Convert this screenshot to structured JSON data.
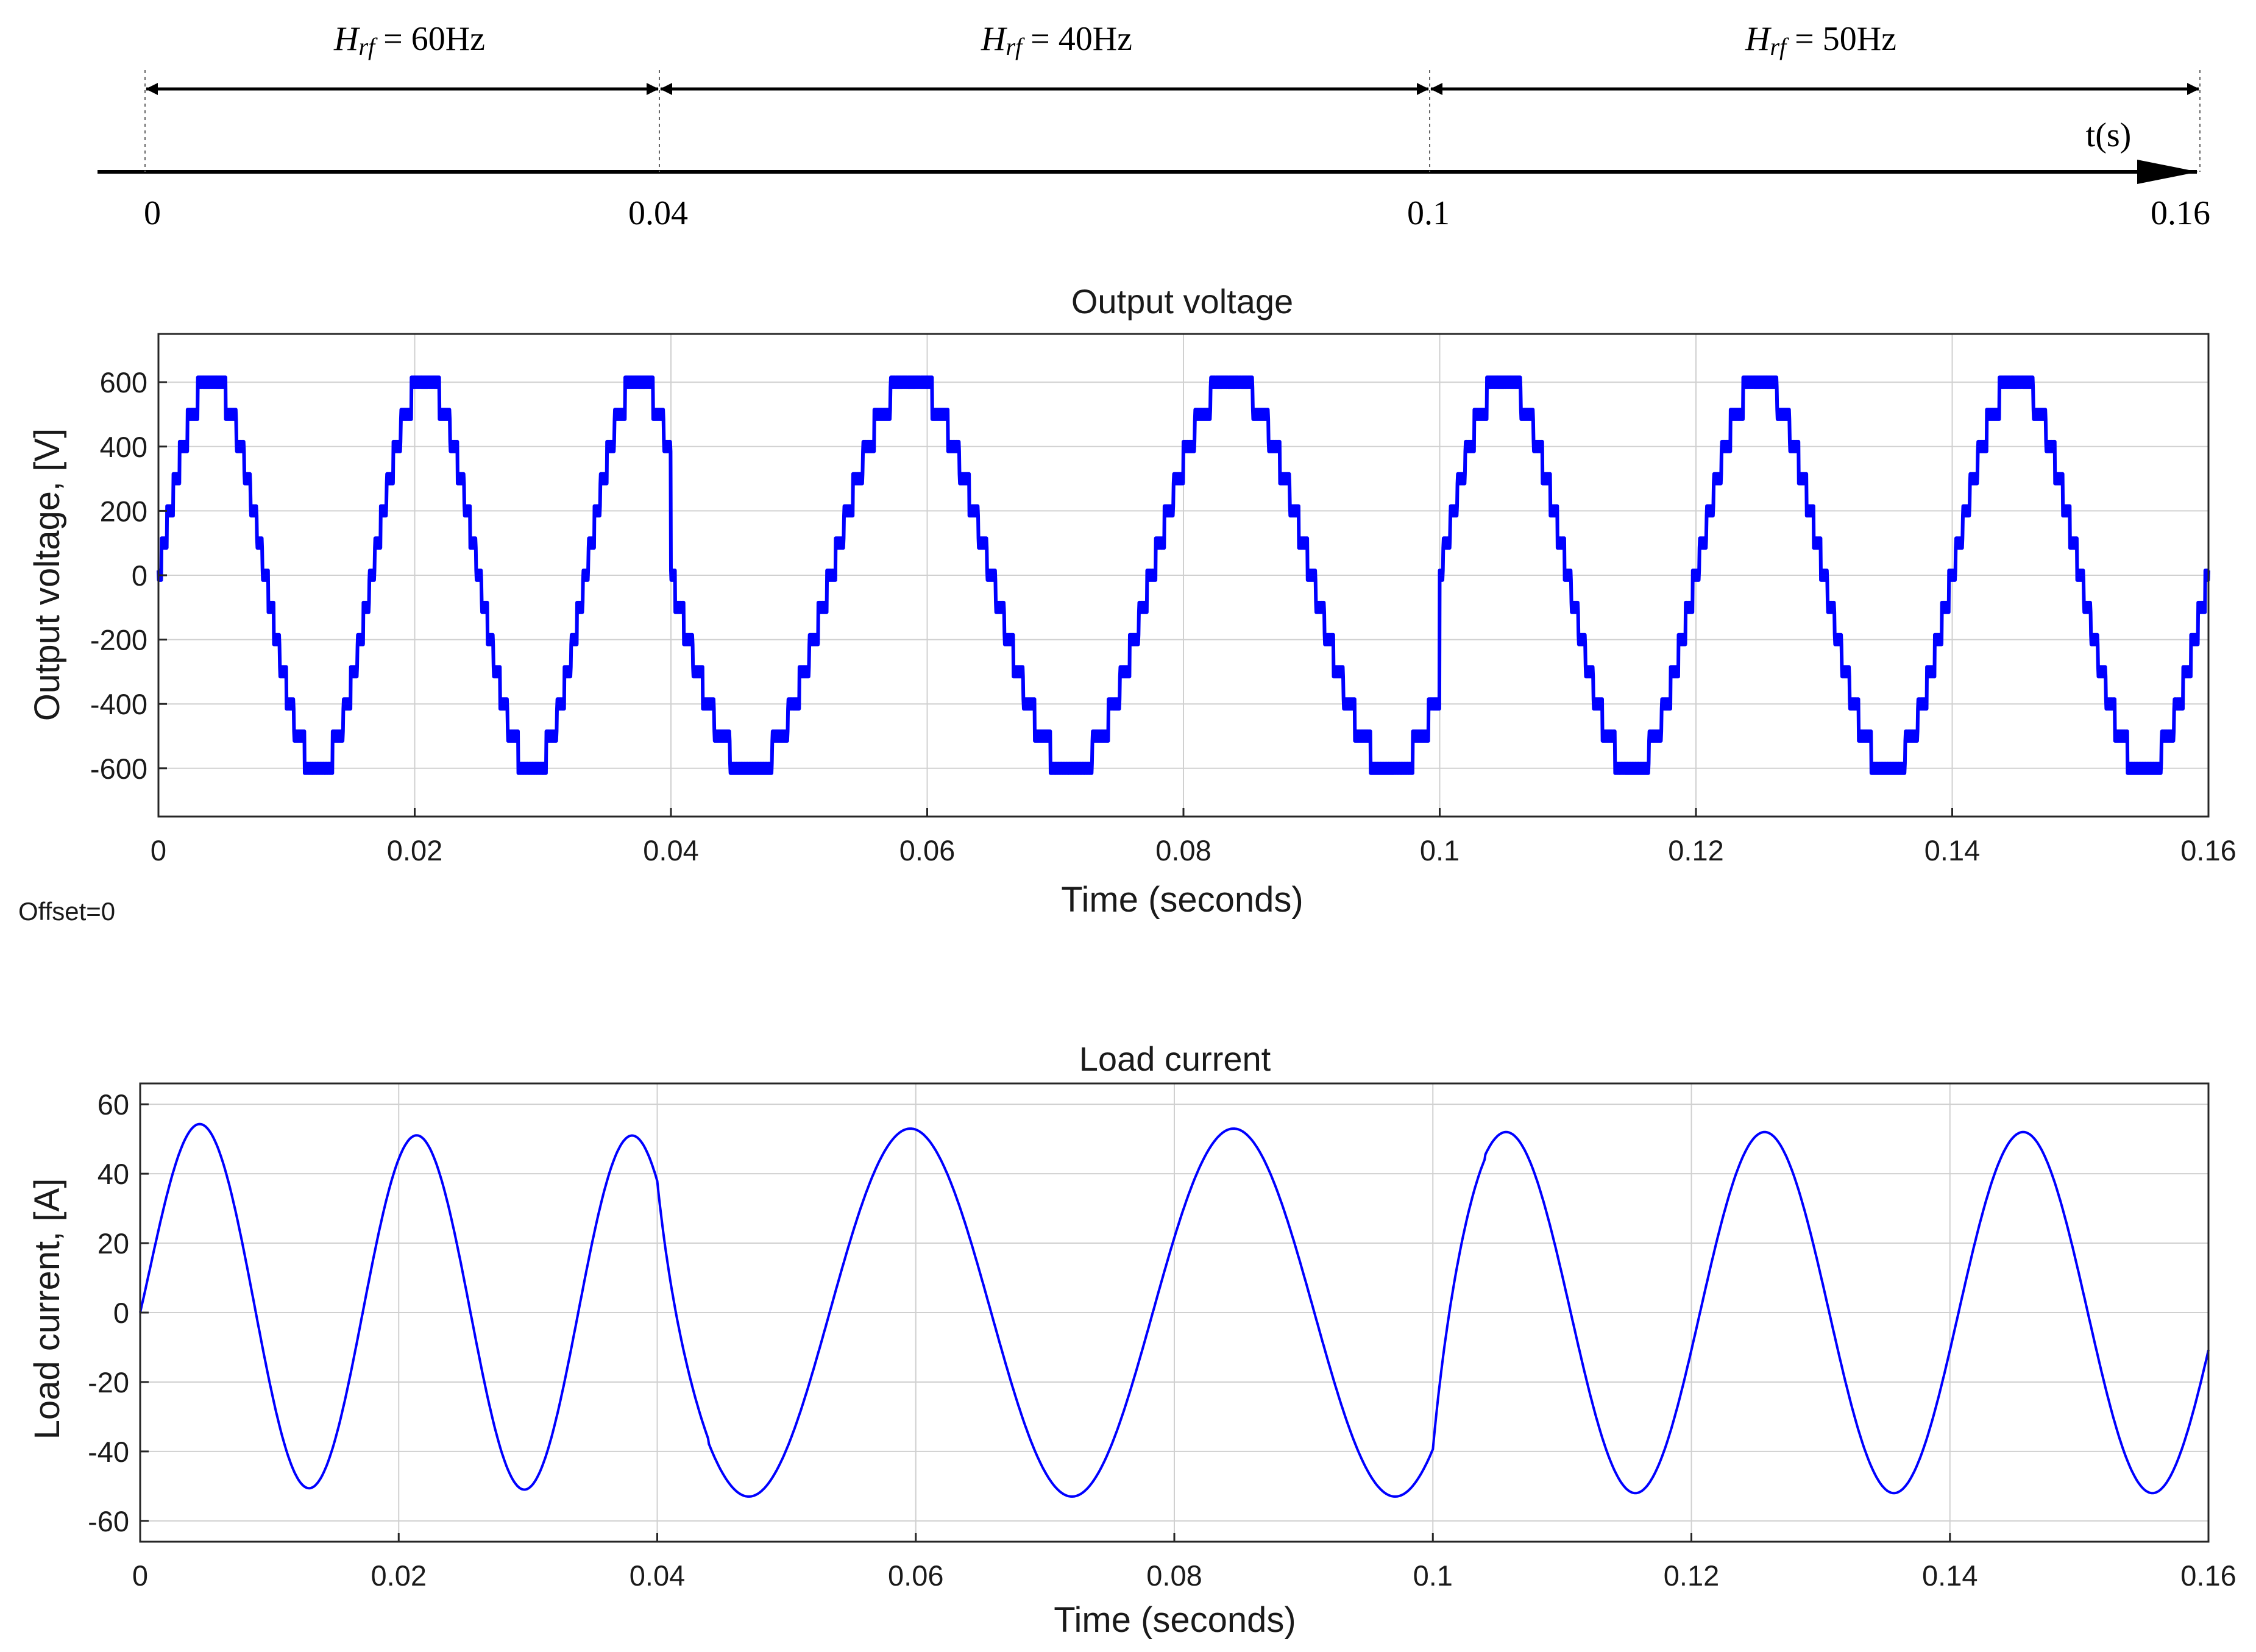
{
  "timeline": {
    "axis_label": "t(s)",
    "ticks": [
      "0",
      "0.04",
      "0.1",
      "0.16"
    ],
    "segments": [
      {
        "symbol": "H",
        "subscript": "rf",
        "value_text": " = 60Hz",
        "start": 0,
        "end": 0.04
      },
      {
        "symbol": "H",
        "subscript": "rf",
        "value_text": " = 40Hz",
        "start": 0.04,
        "end": 0.1
      },
      {
        "symbol": "H",
        "subscript": "rf",
        "value_text": " = 50Hz",
        "start": 0.1,
        "end": 0.16
      }
    ]
  },
  "offset_label": "Offset=0",
  "chart_data": [
    {
      "type": "line",
      "title": "Output voltage",
      "xlabel": "Time (seconds)",
      "ylabel": "Output voltage, [V]",
      "xlim": [
        0,
        0.16
      ],
      "ylim": [
        -750,
        750
      ],
      "xticks": [
        0,
        0.02,
        0.04,
        0.06,
        0.08,
        0.1,
        0.12,
        0.14,
        0.16
      ],
      "xtick_labels": [
        "0",
        "0.02",
        "0.04",
        "0.06",
        "0.08",
        "0.1",
        "0.12",
        "0.14",
        "0.16"
      ],
      "yticks": [
        -600,
        -400,
        -200,
        0,
        200,
        400,
        600
      ],
      "ytick_labels": [
        "-600",
        "-400",
        "-200",
        "0",
        "200",
        "400",
        "600"
      ],
      "grid": true,
      "color": "#0000ff",
      "waveform": "staircase multilevel voltage with PWM switching band",
      "amplitude": 600,
      "levels": 6,
      "switching_band": 30,
      "segments": [
        {
          "start": 0,
          "end": 0.04,
          "frequency": 60,
          "phase_deg": 0
        },
        {
          "start": 0.04,
          "end": 0.1,
          "frequency": 40,
          "phase_deg": 180
        },
        {
          "start": 0.1,
          "end": 0.16,
          "frequency": 50,
          "phase_deg": 0
        }
      ]
    },
    {
      "type": "line",
      "title": "Load current",
      "xlabel": "Time (seconds)",
      "ylabel": "Load current, [A]",
      "xlim": [
        0,
        0.16
      ],
      "ylim": [
        -66,
        66
      ],
      "xticks": [
        0,
        0.02,
        0.04,
        0.06,
        0.08,
        0.1,
        0.12,
        0.14,
        0.16
      ],
      "xtick_labels": [
        "0",
        "0.02",
        "0.04",
        "0.06",
        "0.08",
        "0.1",
        "0.12",
        "0.14",
        "0.16"
      ],
      "yticks": [
        -60,
        -40,
        -20,
        0,
        20,
        40,
        60
      ],
      "ytick_labels": [
        "-60",
        "-40",
        "-20",
        "0",
        "20",
        "40",
        "60"
      ],
      "grid": true,
      "color": "#0000ff",
      "waveform": "sinusoid",
      "series": [
        {
          "start": 0,
          "end": 0.04,
          "frequency": 60,
          "amplitude": 51,
          "lag_deg": 12
        },
        {
          "start": 0.04,
          "end": 0.1,
          "frequency": 40,
          "amplitude": 53,
          "lag_deg": 12
        },
        {
          "start": 0.1,
          "end": 0.16,
          "frequency": 50,
          "amplitude": 52,
          "lag_deg": 12
        }
      ],
      "peaks": [
        {
          "x": 0.005,
          "y": 51
        },
        {
          "x": 0.0215,
          "y": 51
        },
        {
          "x": 0.038,
          "y": 51
        },
        {
          "x": 0.057,
          "y": 53
        },
        {
          "x": 0.082,
          "y": 53
        },
        {
          "x": 0.106,
          "y": 52
        },
        {
          "x": 0.126,
          "y": 52
        },
        {
          "x": 0.146,
          "y": 52
        }
      ],
      "troughs": [
        {
          "x": 0.0133,
          "y": -51
        },
        {
          "x": 0.03,
          "y": -51
        },
        {
          "x": 0.0445,
          "y": -53
        },
        {
          "x": 0.0695,
          "y": -53
        },
        {
          "x": 0.0945,
          "y": -53
        },
        {
          "x": 0.116,
          "y": -52
        },
        {
          "x": 0.136,
          "y": -52
        },
        {
          "x": 0.156,
          "y": -52
        }
      ]
    }
  ]
}
